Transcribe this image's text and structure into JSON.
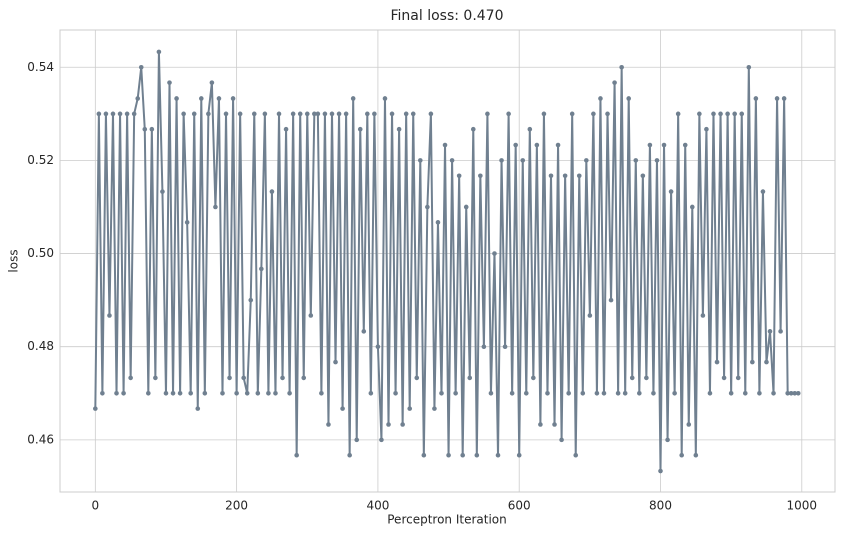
{
  "chart_data": {
    "type": "line",
    "title": "Final loss: 0.470",
    "xlabel": "Perceptron Iteration",
    "ylabel": "loss",
    "xlim": [
      -50,
      1047
    ],
    "ylim": [
      0.4488,
      0.548
    ],
    "xticks": [
      0,
      200,
      400,
      600,
      800,
      1000
    ],
    "yticks": [
      0.46,
      0.48,
      {
        "value": 0.5,
        "label": "0.50"
      },
      0.52,
      0.54
    ],
    "grid": true,
    "x": [
      0,
      5,
      10,
      15,
      20,
      25,
      30,
      35,
      40,
      45,
      50,
      55,
      60,
      65,
      70,
      75,
      80,
      85,
      90,
      95,
      100,
      105,
      110,
      115,
      120,
      125,
      130,
      135,
      140,
      145,
      150,
      155,
      160,
      165,
      170,
      175,
      180,
      185,
      190,
      195,
      200,
      205,
      210,
      215,
      220,
      225,
      230,
      235,
      240,
      245,
      250,
      255,
      260,
      265,
      270,
      275,
      280,
      285,
      290,
      295,
      300,
      305,
      310,
      315,
      320,
      325,
      330,
      335,
      340,
      345,
      350,
      355,
      360,
      365,
      370,
      375,
      380,
      385,
      390,
      395,
      400,
      405,
      410,
      415,
      420,
      425,
      430,
      435,
      440,
      445,
      450,
      455,
      460,
      465,
      470,
      475,
      480,
      485,
      490,
      495,
      500,
      505,
      510,
      515,
      520,
      525,
      530,
      535,
      540,
      545,
      550,
      555,
      560,
      565,
      570,
      575,
      580,
      585,
      590,
      595,
      600,
      605,
      610,
      615,
      620,
      625,
      630,
      635,
      640,
      645,
      650,
      655,
      660,
      665,
      670,
      675,
      680,
      685,
      690,
      695,
      700,
      705,
      710,
      715,
      720,
      725,
      730,
      735,
      740,
      745,
      750,
      755,
      760,
      765,
      770,
      775,
      780,
      785,
      790,
      795,
      800,
      805,
      810,
      815,
      820,
      825,
      830,
      835,
      840,
      845,
      850,
      855,
      860,
      865,
      870,
      875,
      880,
      885,
      890,
      895,
      900,
      905,
      910,
      915,
      920,
      925,
      930,
      935,
      940,
      945,
      950,
      955,
      960,
      965,
      970,
      975,
      980,
      985,
      990,
      995
    ],
    "series": [
      {
        "name": "loss",
        "color": "#708090",
        "values": [
          0.4667,
          0.53,
          0.47,
          0.53,
          0.4867,
          0.53,
          0.47,
          0.53,
          0.47,
          0.53,
          0.4733,
          0.53,
          0.5333,
          0.54,
          0.5267,
          0.47,
          0.5267,
          0.4733,
          0.5433,
          0.5133,
          0.47,
          0.5367,
          0.47,
          0.5333,
          0.47,
          0.53,
          0.5067,
          0.47,
          0.53,
          0.4667,
          0.5333,
          0.47,
          0.53,
          0.5367,
          0.51,
          0.5333,
          0.47,
          0.53,
          0.4733,
          0.5333,
          0.47,
          0.53,
          0.4733,
          0.47,
          0.49,
          0.53,
          0.47,
          0.4967,
          0.53,
          0.47,
          0.5133,
          0.47,
          0.53,
          0.4733,
          0.5267,
          0.47,
          0.53,
          0.4567,
          0.53,
          0.4733,
          0.53,
          0.4867,
          0.53,
          0.53,
          0.47,
          0.53,
          0.4633,
          0.53,
          0.4767,
          0.53,
          0.4667,
          0.53,
          0.4567,
          0.5333,
          0.46,
          0.5267,
          0.4833,
          0.53,
          0.47,
          0.53,
          0.48,
          0.46,
          0.5333,
          0.4633,
          0.53,
          0.47,
          0.5267,
          0.4633,
          0.53,
          0.4667,
          0.53,
          0.4733,
          0.52,
          0.4567,
          0.51,
          0.53,
          0.4667,
          0.5067,
          0.47,
          0.5233,
          0.4567,
          0.52,
          0.47,
          0.5167,
          0.4567,
          0.51,
          0.4733,
          0.5267,
          0.4567,
          0.5167,
          0.48,
          0.53,
          0.47,
          0.5,
          0.4567,
          0.52,
          0.48,
          0.53,
          0.47,
          0.5233,
          0.4567,
          0.52,
          0.47,
          0.5267,
          0.4733,
          0.5233,
          0.4633,
          0.53,
          0.47,
          0.5167,
          0.4633,
          0.5233,
          0.46,
          0.5167,
          0.47,
          0.53,
          0.4567,
          0.5167,
          0.47,
          0.52,
          0.4867,
          0.53,
          0.47,
          0.5333,
          0.47,
          0.53,
          0.49,
          0.5367,
          0.47,
          0.54,
          0.47,
          0.5333,
          0.4733,
          0.52,
          0.47,
          0.5167,
          0.4733,
          0.5233,
          0.47,
          0.52,
          0.4533,
          0.5233,
          0.46,
          0.5133,
          0.47,
          0.53,
          0.4567,
          0.5233,
          0.4633,
          0.51,
          0.4567,
          0.53,
          0.4867,
          0.5267,
          0.47,
          0.53,
          0.4767,
          0.53,
          0.4733,
          0.53,
          0.47,
          0.53,
          0.4733,
          0.53,
          0.47,
          0.54,
          0.4767,
          0.5333,
          0.47,
          0.5133,
          0.4767,
          0.4833,
          0.47,
          0.5333,
          0.4833,
          0.5333,
          0.47,
          0.47,
          0.47,
          0.47
        ]
      }
    ]
  }
}
